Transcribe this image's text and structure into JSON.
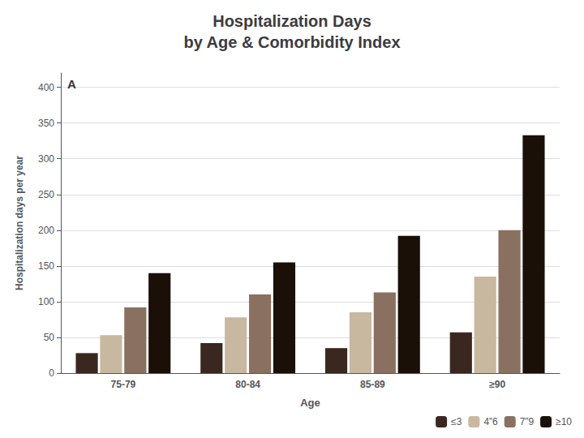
{
  "chart_data": {
    "type": "bar",
    "title": "Hospitalization Days\nby Age & Comorbidity Index",
    "categories": [
      "75-79",
      "80-84",
      "85-89",
      "≥90"
    ],
    "series": [
      {
        "name": "≤3",
        "color": "#3a2820",
        "values": [
          28,
          42,
          35,
          57
        ]
      },
      {
        "name": "4”6",
        "color": "#c8b8a0",
        "values": [
          53,
          78,
          85,
          135
        ]
      },
      {
        "name": "7”9",
        "color": "#8a7060",
        "values": [
          92,
          110,
          113,
          200
        ]
      },
      {
        "name": "≥10",
        "color": "#1a1008",
        "values": [
          140,
          155,
          192,
          333
        ]
      }
    ],
    "xlabel": "Age",
    "ylabel": "Hospitalization days per year",
    "ylim": [
      0,
      420
    ],
    "yticks": [
      0,
      50,
      100,
      150,
      200,
      250,
      300,
      350,
      400
    ],
    "grid": true,
    "legend": "lower right",
    "annotations": [
      "A"
    ]
  }
}
